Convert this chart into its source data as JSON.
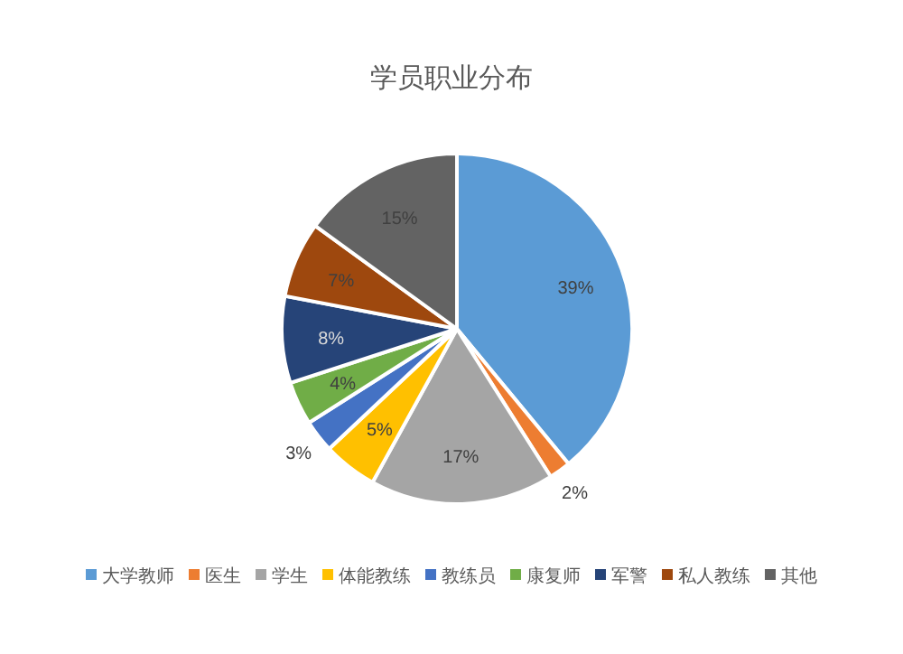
{
  "chart_data": {
    "type": "pie",
    "title": "学员职业分布",
    "categories": [
      "大学教师",
      "医生",
      "学生",
      "体能教练",
      "教练员",
      "康复师",
      "军警",
      "私人教练",
      "其他"
    ],
    "values": [
      39,
      2,
      17,
      5,
      3,
      4,
      8,
      7,
      15
    ],
    "value_labels": [
      "39%",
      "2%",
      "17%",
      "5%",
      "3%",
      "4%",
      "8%",
      "7%",
      "15%"
    ],
    "colors": [
      "#5b9bd5",
      "#ed7d31",
      "#a5a5a5",
      "#ffc000",
      "#4472c4",
      "#70ad47",
      "#264478",
      "#9e480e",
      "#636363"
    ],
    "legend": "bottom"
  }
}
